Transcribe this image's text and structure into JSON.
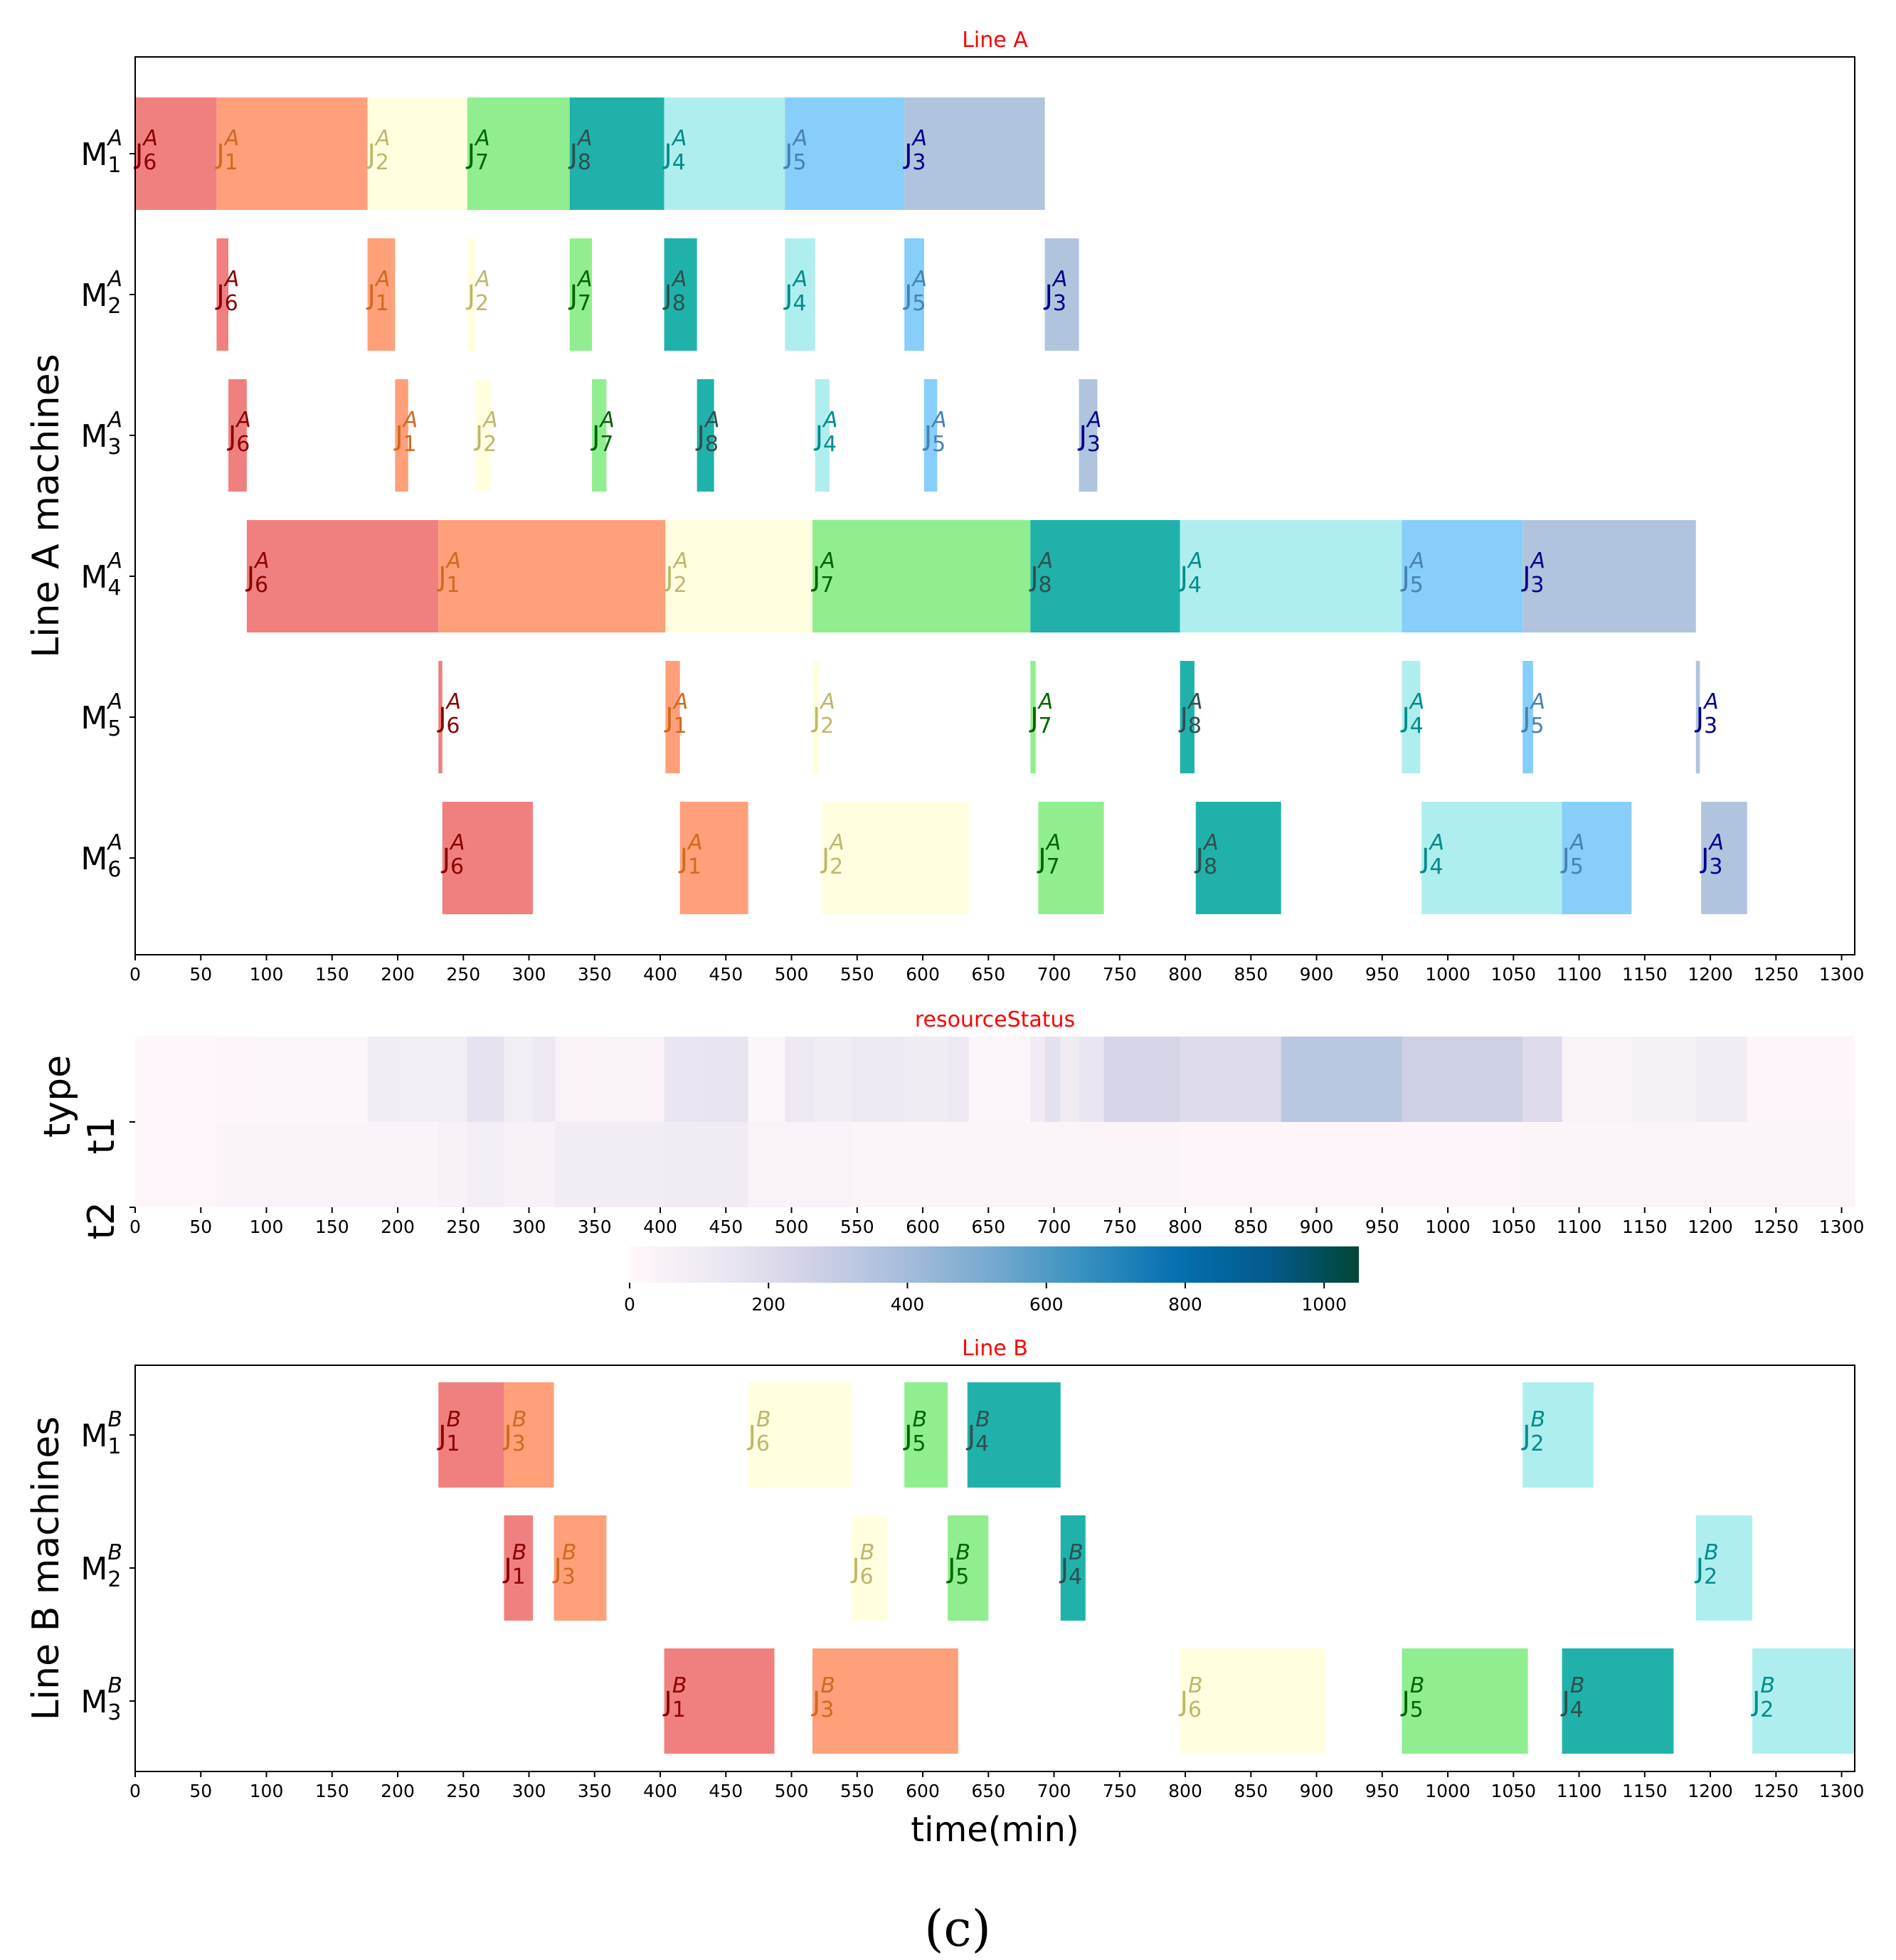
{
  "chart_data": [
    {
      "type": "gantt",
      "title": "Line A",
      "ylabel": "Line A machines",
      "xlim": [
        0,
        1310
      ],
      "xticks": [
        0,
        50,
        100,
        150,
        200,
        250,
        300,
        350,
        400,
        450,
        500,
        550,
        600,
        650,
        700,
        750,
        800,
        850,
        900,
        950,
        1000,
        1050,
        1100,
        1150,
        1200,
        1250,
        1300
      ],
      "line": "A",
      "machines": [
        "1",
        "2",
        "3",
        "4",
        "5",
        "6"
      ],
      "job_colors": {
        "6": "#F08080",
        "1": "#FFA07A",
        "2": "#FFFFE0",
        "7": "#90EE90",
        "8": "#20B2AA",
        "4": "#AFEEEE",
        "5": "#87CEFA",
        "3": "#B0C4DE"
      },
      "label_colors": {
        "6": "#8B0000",
        "1": "#D2691E",
        "2": "#BDB76B",
        "7": "#006400",
        "8": "#2F4F4F",
        "4": "#008B8B",
        "5": "#4682B4",
        "3": "#00008B"
      },
      "tasks": [
        {
          "m": 0,
          "job": "6",
          "start": 0,
          "end": 62
        },
        {
          "m": 0,
          "job": "1",
          "start": 62,
          "end": 177
        },
        {
          "m": 0,
          "job": "2",
          "start": 177,
          "end": 253
        },
        {
          "m": 0,
          "job": "7",
          "start": 253,
          "end": 331
        },
        {
          "m": 0,
          "job": "8",
          "start": 331,
          "end": 403
        },
        {
          "m": 0,
          "job": "4",
          "start": 403,
          "end": 495
        },
        {
          "m": 0,
          "job": "5",
          "start": 495,
          "end": 586
        },
        {
          "m": 0,
          "job": "3",
          "start": 586,
          "end": 693
        },
        {
          "m": 1,
          "job": "6",
          "start": 62,
          "end": 71
        },
        {
          "m": 1,
          "job": "1",
          "start": 177,
          "end": 198
        },
        {
          "m": 1,
          "job": "2",
          "start": 253,
          "end": 259
        },
        {
          "m": 1,
          "job": "7",
          "start": 331,
          "end": 348
        },
        {
          "m": 1,
          "job": "8",
          "start": 403,
          "end": 428
        },
        {
          "m": 1,
          "job": "4",
          "start": 495,
          "end": 518
        },
        {
          "m": 1,
          "job": "5",
          "start": 586,
          "end": 601
        },
        {
          "m": 1,
          "job": "3",
          "start": 693,
          "end": 719
        },
        {
          "m": 2,
          "job": "6",
          "start": 71,
          "end": 85
        },
        {
          "m": 2,
          "job": "1",
          "start": 198,
          "end": 208
        },
        {
          "m": 2,
          "job": "2",
          "start": 259,
          "end": 271
        },
        {
          "m": 2,
          "job": "7",
          "start": 348,
          "end": 359
        },
        {
          "m": 2,
          "job": "8",
          "start": 428,
          "end": 441
        },
        {
          "m": 2,
          "job": "4",
          "start": 518,
          "end": 529
        },
        {
          "m": 2,
          "job": "5",
          "start": 601,
          "end": 611
        },
        {
          "m": 2,
          "job": "3",
          "start": 719,
          "end": 733
        },
        {
          "m": 3,
          "job": "6",
          "start": 85,
          "end": 231
        },
        {
          "m": 3,
          "job": "1",
          "start": 231,
          "end": 404
        },
        {
          "m": 3,
          "job": "2",
          "start": 404,
          "end": 516
        },
        {
          "m": 3,
          "job": "7",
          "start": 516,
          "end": 682
        },
        {
          "m": 3,
          "job": "8",
          "start": 682,
          "end": 796
        },
        {
          "m": 3,
          "job": "4",
          "start": 796,
          "end": 965
        },
        {
          "m": 3,
          "job": "5",
          "start": 965,
          "end": 1057
        },
        {
          "m": 3,
          "job": "3",
          "start": 1057,
          "end": 1189
        },
        {
          "m": 4,
          "job": "6",
          "start": 231,
          "end": 234
        },
        {
          "m": 4,
          "job": "1",
          "start": 404,
          "end": 415
        },
        {
          "m": 4,
          "job": "2",
          "start": 516,
          "end": 521
        },
        {
          "m": 4,
          "job": "7",
          "start": 682,
          "end": 686
        },
        {
          "m": 4,
          "job": "8",
          "start": 796,
          "end": 807
        },
        {
          "m": 4,
          "job": "4",
          "start": 965,
          "end": 979
        },
        {
          "m": 4,
          "job": "5",
          "start": 1057,
          "end": 1065
        },
        {
          "m": 4,
          "job": "3",
          "start": 1189,
          "end": 1192
        },
        {
          "m": 5,
          "job": "6",
          "start": 234,
          "end": 303
        },
        {
          "m": 5,
          "job": "1",
          "start": 415,
          "end": 467
        },
        {
          "m": 5,
          "job": "2",
          "start": 523,
          "end": 635
        },
        {
          "m": 5,
          "job": "7",
          "start": 688,
          "end": 738
        },
        {
          "m": 5,
          "job": "8",
          "start": 808,
          "end": 873
        },
        {
          "m": 5,
          "job": "4",
          "start": 980,
          "end": 1087
        },
        {
          "m": 5,
          "job": "5",
          "start": 1087,
          "end": 1140
        },
        {
          "m": 5,
          "job": "3",
          "start": 1193,
          "end": 1228
        }
      ]
    },
    {
      "type": "heatmap",
      "title": "resourceStatus",
      "ylabel": "type",
      "rows": [
        "t1",
        "t2"
      ],
      "xlim": [
        0,
        1310
      ],
      "xticks": [
        0,
        50,
        100,
        150,
        200,
        250,
        300,
        350,
        400,
        450,
        500,
        550,
        600,
        650,
        700,
        750,
        800,
        850,
        900,
        950,
        1000,
        1050,
        1100,
        1150,
        1200,
        1250,
        1300
      ],
      "colorbar": {
        "min": 0,
        "max": 1050,
        "ticks": [
          0,
          200,
          400,
          600,
          800,
          1000
        ],
        "colors": [
          "#fff7fb",
          "#ece7f2",
          "#d0d1e6",
          "#a6bddb",
          "#74a9cf",
          "#3690c0",
          "#0570b0",
          "#045a8d",
          "#014636"
        ]
      },
      "t1": [
        {
          "start": 0,
          "end": 62,
          "v": 10
        },
        {
          "start": 62,
          "end": 85,
          "v": 15
        },
        {
          "start": 85,
          "end": 177,
          "v": 20
        },
        {
          "start": 177,
          "end": 198,
          "v": 90
        },
        {
          "start": 198,
          "end": 253,
          "v": 85
        },
        {
          "start": 253,
          "end": 281,
          "v": 160
        },
        {
          "start": 281,
          "end": 303,
          "v": 80
        },
        {
          "start": 303,
          "end": 320,
          "v": 120
        },
        {
          "start": 320,
          "end": 331,
          "v": 40
        },
        {
          "start": 331,
          "end": 348,
          "v": 30
        },
        {
          "start": 348,
          "end": 359,
          "v": 35
        },
        {
          "start": 359,
          "end": 403,
          "v": 40
        },
        {
          "start": 403,
          "end": 428,
          "v": 140
        },
        {
          "start": 428,
          "end": 467,
          "v": 150
        },
        {
          "start": 467,
          "end": 495,
          "v": 20
        },
        {
          "start": 495,
          "end": 518,
          "v": 120
        },
        {
          "start": 518,
          "end": 546,
          "v": 90
        },
        {
          "start": 546,
          "end": 586,
          "v": 120
        },
        {
          "start": 586,
          "end": 619,
          "v": 95
        },
        {
          "start": 619,
          "end": 635,
          "v": 120
        },
        {
          "start": 635,
          "end": 682,
          "v": 20
        },
        {
          "start": 682,
          "end": 693,
          "v": 100
        },
        {
          "start": 693,
          "end": 705,
          "v": 170
        },
        {
          "start": 705,
          "end": 719,
          "v": 100
        },
        {
          "start": 719,
          "end": 738,
          "v": 140
        },
        {
          "start": 738,
          "end": 796,
          "v": 240
        },
        {
          "start": 796,
          "end": 873,
          "v": 200
        },
        {
          "start": 873,
          "end": 965,
          "v": 330
        },
        {
          "start": 965,
          "end": 1057,
          "v": 270
        },
        {
          "start": 1057,
          "end": 1087,
          "v": 200
        },
        {
          "start": 1087,
          "end": 1140,
          "v": 40
        },
        {
          "start": 1140,
          "end": 1189,
          "v": 60
        },
        {
          "start": 1189,
          "end": 1228,
          "v": 90
        },
        {
          "start": 1228,
          "end": 1310,
          "v": 15
        }
      ],
      "t2": [
        {
          "start": 0,
          "end": 62,
          "v": 10
        },
        {
          "start": 62,
          "end": 231,
          "v": 35
        },
        {
          "start": 231,
          "end": 253,
          "v": 50
        },
        {
          "start": 253,
          "end": 281,
          "v": 80
        },
        {
          "start": 281,
          "end": 320,
          "v": 45
        },
        {
          "start": 320,
          "end": 403,
          "v": 90
        },
        {
          "start": 403,
          "end": 467,
          "v": 95
        },
        {
          "start": 467,
          "end": 546,
          "v": 40
        },
        {
          "start": 546,
          "end": 796,
          "v": 25
        },
        {
          "start": 796,
          "end": 1057,
          "v": 15
        },
        {
          "start": 1057,
          "end": 1310,
          "v": 25
        }
      ]
    },
    {
      "type": "gantt",
      "title": "Line B",
      "ylabel": "Line B machines",
      "xlabel": "time(min)",
      "xlim": [
        0,
        1310
      ],
      "xticks": [
        0,
        50,
        100,
        150,
        200,
        250,
        300,
        350,
        400,
        450,
        500,
        550,
        600,
        650,
        700,
        750,
        800,
        850,
        900,
        950,
        1000,
        1050,
        1100,
        1150,
        1200,
        1250,
        1300
      ],
      "line": "B",
      "machines": [
        "1",
        "2",
        "3"
      ],
      "job_colors": {
        "1": "#F08080",
        "3": "#FFA07A",
        "6": "#FFFFE0",
        "5": "#90EE90",
        "4": "#20B2AA",
        "2": "#AFEEEE"
      },
      "label_colors": {
        "1": "#8B0000",
        "3": "#D2691E",
        "6": "#BDB76B",
        "5": "#006400",
        "4": "#2F4F4F",
        "2": "#008B8B"
      },
      "tasks": [
        {
          "m": 0,
          "job": "1",
          "start": 231,
          "end": 281
        },
        {
          "m": 0,
          "job": "3",
          "start": 281,
          "end": 319
        },
        {
          "m": 0,
          "job": "6",
          "start": 467,
          "end": 546
        },
        {
          "m": 0,
          "job": "5",
          "start": 586,
          "end": 619
        },
        {
          "m": 0,
          "job": "4",
          "start": 634,
          "end": 705
        },
        {
          "m": 0,
          "job": "2",
          "start": 1057,
          "end": 1111
        },
        {
          "m": 1,
          "job": "1",
          "start": 281,
          "end": 303
        },
        {
          "m": 1,
          "job": "3",
          "start": 319,
          "end": 359
        },
        {
          "m": 1,
          "job": "6",
          "start": 546,
          "end": 573
        },
        {
          "m": 1,
          "job": "5",
          "start": 619,
          "end": 650
        },
        {
          "m": 1,
          "job": "4",
          "start": 705,
          "end": 724
        },
        {
          "m": 1,
          "job": "2",
          "start": 1189,
          "end": 1232
        },
        {
          "m": 2,
          "job": "1",
          "start": 403,
          "end": 487
        },
        {
          "m": 2,
          "job": "3",
          "start": 516,
          "end": 627
        },
        {
          "m": 2,
          "job": "6",
          "start": 796,
          "end": 907
        },
        {
          "m": 2,
          "job": "5",
          "start": 965,
          "end": 1061
        },
        {
          "m": 2,
          "job": "4",
          "start": 1087,
          "end": 1172
        },
        {
          "m": 2,
          "job": "2",
          "start": 1232,
          "end": 1310
        }
      ]
    }
  ],
  "caption": "(c)"
}
